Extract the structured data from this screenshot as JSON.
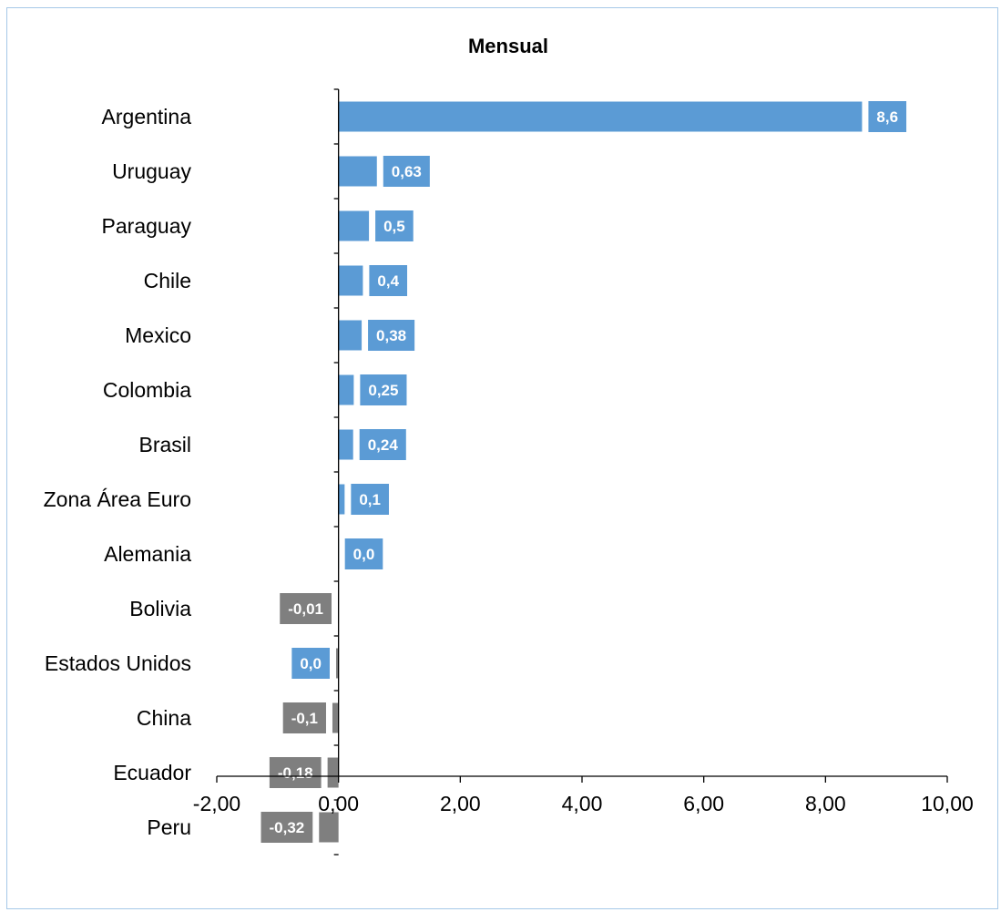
{
  "chart_data": {
    "type": "bar",
    "orientation": "horizontal",
    "title": "Mensual",
    "categories": [
      "Argentina",
      "Uruguay",
      "Paraguay",
      "Chile",
      "Mexico",
      "Colombia",
      "Brasil",
      "Zona Área Euro",
      "Alemania",
      "Bolivia",
      "Estados Unidos",
      "China",
      "Ecuador",
      "Peru"
    ],
    "values": [
      8.6,
      0.63,
      0.5,
      0.4,
      0.38,
      0.25,
      0.24,
      0.1,
      0.0,
      -0.01,
      -0.04,
      -0.1,
      -0.18,
      -0.32
    ],
    "data_labels": [
      "8,6",
      "0,63",
      "0,5",
      "0,4",
      "0,38",
      "0,25",
      "0,24",
      "0,1",
      "0,0",
      "-0,01",
      "0,0",
      "-0,1",
      "-0,18",
      "-0,32"
    ],
    "xlim": [
      -2,
      10
    ],
    "x_ticks": [
      -2,
      0,
      2,
      4,
      6,
      8,
      10
    ],
    "x_tick_labels": [
      "-2,00",
      "0,00",
      "2,00",
      "4,00",
      "6,00",
      "8,00",
      "10,00"
    ],
    "grid": false,
    "legend": "none",
    "colors": {
      "positive": "#5b9bd5",
      "negative": "#7f7f7f",
      "axis": "#000000",
      "frame": "#a6c8e8"
    }
  }
}
